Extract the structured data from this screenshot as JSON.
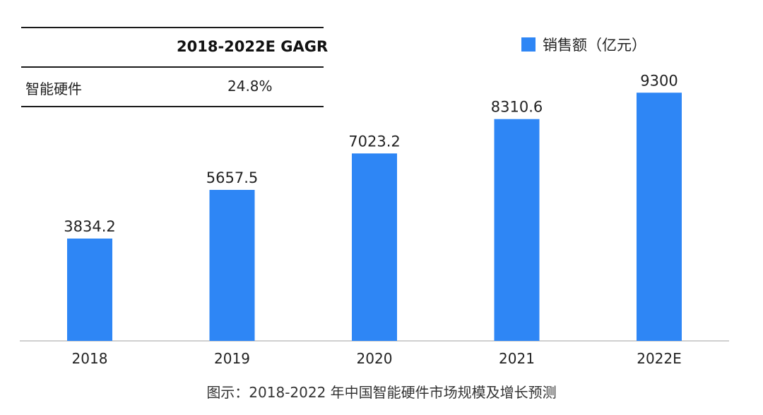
{
  "table": {
    "header": "2018-2022E GAGR",
    "rows": [
      {
        "label": "智能硬件",
        "value": "24.8%"
      }
    ]
  },
  "legend": {
    "label": "销售额（亿元）"
  },
  "caption": "图示：2018-2022 年中国智能硬件市场规模及增长预测",
  "chart_data": {
    "type": "bar",
    "categories": [
      "2018",
      "2019",
      "2020",
      "2021",
      "2022E"
    ],
    "series": [
      {
        "name": "销售额（亿元）",
        "values": [
          3834.2,
          5657.5,
          7023.2,
          8310.6,
          9300
        ],
        "labels": [
          "3834.2",
          "5657.5",
          "7023.2",
          "8310.6",
          "9300"
        ]
      }
    ],
    "ylim": [
      0,
      11000
    ],
    "grid": false,
    "legend_position": "top-right",
    "colors": {
      "bar": "#2e86f5",
      "axis": "#d0d0d0"
    }
  }
}
